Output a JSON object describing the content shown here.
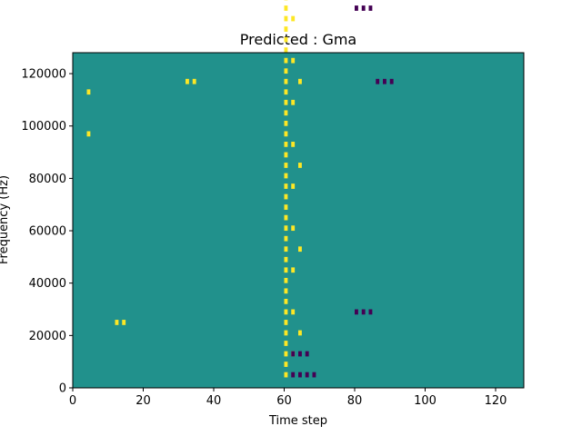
{
  "chart_data": {
    "type": "heatmap",
    "title": "Predicted : Gma",
    "xlabel": "Time step",
    "ylabel": "Frequency (Hz)",
    "xlim": [
      0,
      128
    ],
    "ylim": [
      0,
      128000
    ],
    "x_ticks": [
      "0",
      "20",
      "40",
      "60",
      "80",
      "100",
      "120"
    ],
    "y_ticks": [
      "0",
      "20000",
      "40000",
      "60000",
      "80000",
      "100000",
      "120000"
    ],
    "grid": false,
    "legend": "none",
    "n_time_steps": 128,
    "n_freq_bins": 64,
    "colormap": {
      "low": "#440154",
      "mid": "#21918c",
      "high": "#fde725"
    },
    "background_value": "mid",
    "cells_high": [
      [
        60,
        2
      ],
      [
        60,
        4
      ],
      [
        60,
        6
      ],
      [
        60,
        8
      ],
      [
        60,
        10
      ],
      [
        60,
        12
      ],
      [
        60,
        14
      ],
      [
        60,
        16
      ],
      [
        60,
        18
      ],
      [
        60,
        20
      ],
      [
        60,
        22
      ],
      [
        60,
        24
      ],
      [
        60,
        26
      ],
      [
        60,
        28
      ],
      [
        60,
        30
      ],
      [
        60,
        32
      ],
      [
        60,
        34
      ],
      [
        60,
        36
      ],
      [
        60,
        38
      ],
      [
        60,
        40
      ],
      [
        60,
        42
      ],
      [
        60,
        44
      ],
      [
        60,
        46
      ],
      [
        60,
        48
      ],
      [
        60,
        50
      ],
      [
        60,
        52
      ],
      [
        60,
        54
      ],
      [
        60,
        56
      ],
      [
        60,
        58
      ],
      [
        60,
        60
      ],
      [
        60,
        62
      ],
      [
        60,
        64
      ],
      [
        60,
        66
      ],
      [
        60,
        68
      ],
      [
        60,
        70
      ],
      [
        60,
        72
      ],
      [
        60,
        74
      ],
      [
        60,
        76
      ],
      [
        60,
        78
      ],
      [
        60,
        80
      ],
      [
        60,
        82
      ],
      [
        60,
        84
      ],
      [
        60,
        86
      ],
      [
        60,
        88
      ],
      [
        62,
        6
      ],
      [
        62,
        14
      ],
      [
        62,
        22
      ],
      [
        62,
        30
      ],
      [
        62,
        38
      ],
      [
        62,
        46
      ],
      [
        62,
        54
      ],
      [
        62,
        62
      ],
      [
        62,
        70
      ],
      [
        62,
        78
      ],
      [
        62,
        86
      ],
      [
        64,
        10
      ],
      [
        64,
        26
      ],
      [
        64,
        42
      ],
      [
        64,
        58
      ],
      [
        12,
        12
      ],
      [
        14,
        12
      ],
      [
        4,
        48
      ],
      [
        4,
        56
      ],
      [
        32,
        58
      ],
      [
        34,
        58
      ]
    ],
    "cells_low": [
      [
        62,
        2
      ],
      [
        64,
        2
      ],
      [
        66,
        2
      ],
      [
        68,
        2
      ],
      [
        62,
        6
      ],
      [
        64,
        6
      ],
      [
        66,
        6
      ],
      [
        80,
        14
      ],
      [
        82,
        14
      ],
      [
        84,
        14
      ],
      [
        86,
        58
      ],
      [
        88,
        58
      ],
      [
        90,
        58
      ],
      [
        80,
        72
      ],
      [
        82,
        72
      ],
      [
        84,
        72
      ],
      [
        126,
        100
      ],
      [
        128,
        100
      ]
    ]
  }
}
